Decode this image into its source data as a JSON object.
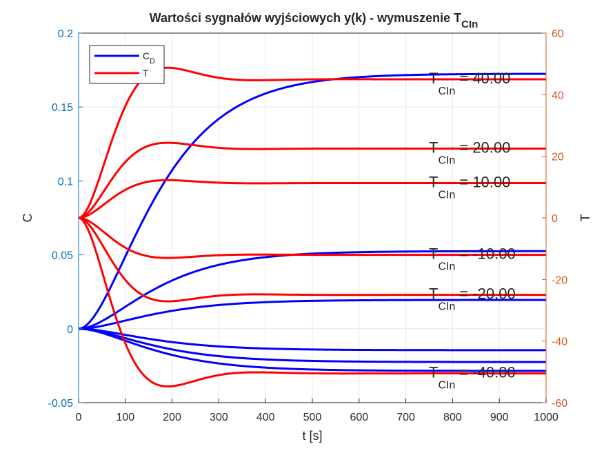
{
  "chart_data": {
    "type": "line",
    "title_main": "Wartości sygnałów wyjściowych y(k) - wymuszenie T",
    "title_sub": "CIn",
    "xlabel": "t [s]",
    "ylabel_left": "C",
    "ylabel_right": "T",
    "xlim": [
      0,
      1000
    ],
    "ylim_left": [
      -0.05,
      0.2
    ],
    "ylim_right": [
      -60,
      60
    ],
    "x_ticks": [
      "0",
      "100",
      "200",
      "300",
      "400",
      "500",
      "600",
      "700",
      "800",
      "900",
      "1000"
    ],
    "y_left_ticks": [
      "-0.05",
      "0",
      "0.05",
      "0.1",
      "0.15",
      "0.2"
    ],
    "y_right_ticks": [
      "-60",
      "-40",
      "-20",
      "0",
      "20",
      "40",
      "60"
    ],
    "grid": true,
    "legend": {
      "position": "top-left",
      "entries": [
        {
          "main": "C",
          "sub": "D",
          "color": "#0000FF"
        },
        {
          "main": "T",
          "sub": "",
          "color": "#FF0000"
        }
      ]
    },
    "colors": {
      "c_series": "#0000FF",
      "t_series": "#FF0000",
      "left_axis": "#0072BD",
      "right_axis": "#D95319"
    },
    "c_series": [
      {
        "input": 40,
        "final": 0.1725
      },
      {
        "input": 10,
        "final": 0.0525
      },
      {
        "input": -10,
        "final": 0.0195
      },
      {
        "input": 20,
        "final": -0.0145
      },
      {
        "input": -20,
        "final": -0.0225
      },
      {
        "input": -40,
        "final": -0.0285
      }
    ],
    "t_series": [
      {
        "input": 40,
        "final": 45.0,
        "peak": 47.0
      },
      {
        "input": 20,
        "final": 22.5,
        "peak": 23.5
      },
      {
        "input": 10,
        "final": 11.3,
        "peak": 11.8
      },
      {
        "input": -10,
        "final": -12.0,
        "peak": -12.5
      },
      {
        "input": -20,
        "final": -25.0,
        "peak": -25.5
      },
      {
        "input": -40,
        "final": -50.5,
        "peak": -51.5
      }
    ],
    "annotations": [
      {
        "main": "T",
        "sub": "CIn",
        "value": "= 40.00",
        "t_value": 45.0
      },
      {
        "main": "T",
        "sub": "CIn",
        "value": "= 20.00",
        "t_value": 22.5
      },
      {
        "main": "T",
        "sub": "CIn",
        "value": "= 10.00",
        "t_value": 11.3
      },
      {
        "main": "T",
        "sub": "CIn",
        "value": "= -10.00",
        "t_value": -12.0
      },
      {
        "main": "T",
        "sub": "CIn",
        "value": "= -20.00",
        "t_value": -25.0
      },
      {
        "main": "T",
        "sub": "CIn",
        "value": "= -40.00",
        "t_value": -50.5
      }
    ]
  }
}
